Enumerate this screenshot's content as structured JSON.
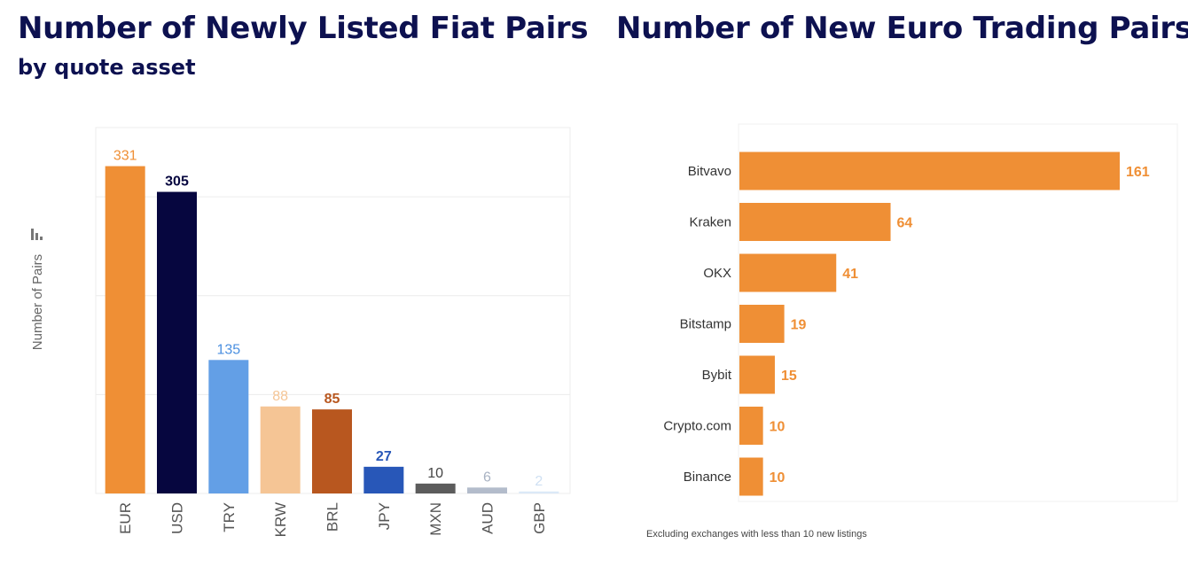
{
  "headings": {
    "left_title": "Number of Newly Listed Fiat Pairs",
    "left_subtitle": "by quote asset",
    "right_title": "Number of New Euro Trading Pairs"
  },
  "note": "Excluding exchanges with less than 10 new listings",
  "colors": {
    "title": "#0d1150",
    "orange": "#ef8f35"
  },
  "chart_data": [
    {
      "type": "bar",
      "orientation": "vertical",
      "ylabel": "Number of Pairs",
      "ylabel_icon": "bar-chart-icon",
      "ylim": [
        0,
        370
      ],
      "grid": true,
      "categories": [
        "EUR",
        "USD",
        "TRY",
        "KRW",
        "BRL",
        "JPY",
        "MXN",
        "AUD",
        "GBP"
      ],
      "values": [
        331,
        305,
        135,
        88,
        85,
        27,
        10,
        6,
        2
      ],
      "data_labels": [
        "331",
        "305",
        "135",
        "88",
        "85",
        "27",
        "10",
        "6",
        "2"
      ],
      "bar_colors": [
        "#ef8f35",
        "#06063f",
        "#639fe6",
        "#f5c595",
        "#b8571f",
        "#2857b8",
        "#5c5c5c",
        "#b3bccb",
        "#dbe9f7"
      ],
      "label_colors": [
        "#ef8f35",
        "#06063f",
        "#4a8fe0",
        "#f5c595",
        "#b8571f",
        "#2857b8",
        "#444444",
        "#a8b2c2",
        "#cfe0f3"
      ]
    },
    {
      "type": "bar",
      "orientation": "horizontal",
      "categories": [
        "Bitvavo",
        "Kraken",
        "OKX",
        "Bitstamp",
        "Bybit",
        "Crypto.com",
        "Binance"
      ],
      "values": [
        161,
        64,
        41,
        19,
        15,
        10,
        10
      ],
      "data_labels": [
        "161",
        "64",
        "41",
        "19",
        "15",
        "10",
        "10"
      ],
      "bar_color": "#ef8f35",
      "label_color": "#ef8f35"
    }
  ]
}
